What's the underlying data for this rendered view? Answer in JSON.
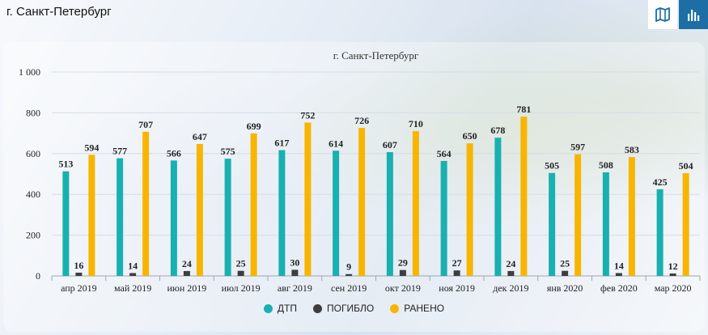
{
  "header": {
    "title": "г. Санкт-Петербург"
  },
  "toolbar": {
    "map_icon": "map-icon",
    "bars_icon": "bar-chart-icon"
  },
  "colors": {
    "dtp": "#18b0b0",
    "pogiblo": "#3d3d3d",
    "raneno": "#f7b500",
    "active_button": "#1c6ea4"
  },
  "chart_data": {
    "type": "bar",
    "title": "г. Санкт-Петербург",
    "xlabel": "",
    "ylabel": "",
    "ylim": [
      0,
      1000
    ],
    "yticks": [
      "0",
      "200",
      "400",
      "600",
      "800",
      "1 000"
    ],
    "ytick_values": [
      0,
      200,
      400,
      600,
      800,
      1000
    ],
    "grid": true,
    "legend": "bottom-center",
    "categories": [
      "апр 2019",
      "май 2019",
      "июн 2019",
      "июл 2019",
      "авг 2019",
      "сен 2019",
      "окт 2019",
      "ноя 2019",
      "дек 2019",
      "янв 2020",
      "фев 2020",
      "мар 2020"
    ],
    "series": [
      {
        "name": "ДТП",
        "values": [
          513,
          577,
          566,
          575,
          617,
          614,
          607,
          564,
          678,
          505,
          508,
          425
        ]
      },
      {
        "name": "ПОГИБЛО",
        "values": [
          16,
          14,
          24,
          25,
          30,
          9,
          29,
          27,
          24,
          25,
          14,
          12
        ]
      },
      {
        "name": "РАНЕНО",
        "values": [
          594,
          707,
          647,
          699,
          752,
          726,
          710,
          650,
          781,
          597,
          583,
          504
        ]
      }
    ]
  }
}
